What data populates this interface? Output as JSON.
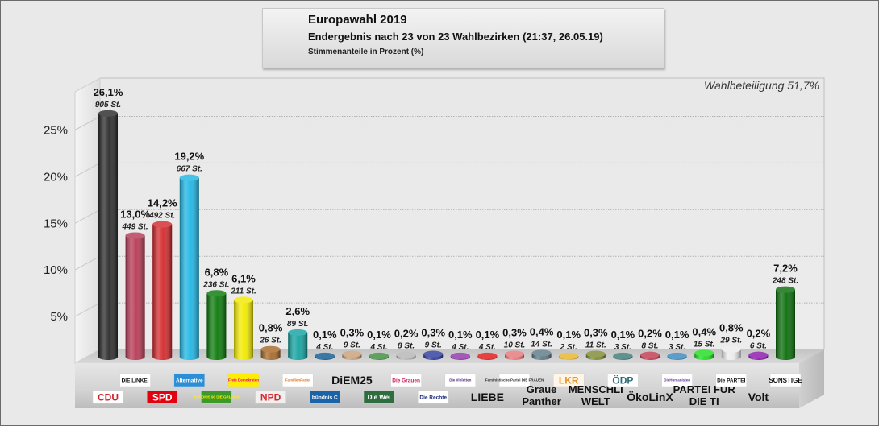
{
  "header": {
    "title": "Europawahl 2019",
    "subtitle": "Endergebnis nach 23 von 23 Wahlbezirken (21:37, 26.05.19)",
    "note": "Stimmenanteile in Prozent (%)"
  },
  "turnout_label": "Wahlbeteiligung 51,7%",
  "chart_data": {
    "type": "bar",
    "title": "Europawahl 2019",
    "subtitle": "Endergebnis nach 23 von 23 Wahlbezirken (21:37, 26.05.19)",
    "ylabel": "Stimmenanteile in Prozent (%)",
    "ylim": [
      0,
      28
    ],
    "yticks": [
      {
        "value": 5,
        "label": "5%"
      },
      {
        "value": 10,
        "label": "10%"
      },
      {
        "value": 15,
        "label": "15%"
      },
      {
        "value": 20,
        "label": "20%"
      },
      {
        "value": 25,
        "label": "25%"
      }
    ],
    "grid": true,
    "categories": [
      {
        "name": "CDU",
        "logo_text": "CDU",
        "row": "bottom",
        "value": 26.1,
        "pct_label": "26,1%",
        "votes_label": "905 St.",
        "color": "#2b2b2b",
        "logo_bg": "#ffffff",
        "logo_fg": "#d71f26"
      },
      {
        "name": "DIE LINKE.",
        "logo_text": "DIE LiNKE.",
        "row": "top",
        "value": 13.0,
        "pct_label": "13,0%",
        "votes_label": "449 St.",
        "color": "#b83a55",
        "logo_bg": "#ffffff",
        "logo_fg": "#111111"
      },
      {
        "name": "SPD",
        "logo_text": "SPD",
        "row": "bottom",
        "value": 14.2,
        "pct_label": "14,2%",
        "votes_label": "492 St.",
        "color": "#d42a2e",
        "logo_bg": "#e3000f",
        "logo_fg": "#ffffff"
      },
      {
        "name": "Alternative für Deutschland",
        "logo_text": "Alternative",
        "row": "top",
        "value": 19.2,
        "pct_label": "19,2%",
        "votes_label": "667 St.",
        "color": "#1fb6e4",
        "logo_bg": "#2a8fd8",
        "logo_fg": "#ffffff"
      },
      {
        "name": "Bündnis 90 / Die Grünen",
        "logo_text": "BÜNDNIS 90 DIE GRÜNEN",
        "row": "bottom",
        "value": 6.8,
        "pct_label": "6,8%",
        "votes_label": "236 St.",
        "color": "#0a7a0a",
        "logo_bg": "#3c9a2a",
        "logo_fg": "#ffee00"
      },
      {
        "name": "Freie Demokraten FDP",
        "logo_text": "Freie Demokraten",
        "row": "top",
        "value": 6.1,
        "pct_label": "6,1%",
        "votes_label": "211 St.",
        "color": "#f2ea00",
        "logo_bg": "#ffed00",
        "logo_fg": "#e5007d"
      },
      {
        "name": "NPD",
        "logo_text": "NPD",
        "row": "bottom",
        "value": 0.8,
        "pct_label": "0,8%",
        "votes_label": "26 St.",
        "color": "#a86a2a",
        "logo_bg": "#f0f0f0",
        "logo_fg": "#d8262e"
      },
      {
        "name": "Familien-Partei",
        "logo_text": "FamilienPartei",
        "row": "top",
        "value": 2.6,
        "pct_label": "2,6%",
        "votes_label": "89 St.",
        "color": "#14a3a0",
        "logo_bg": "#ffffff",
        "logo_fg": "#e8781e"
      },
      {
        "name": "Bündnis C",
        "logo_text": "bündnis C",
        "row": "bottom",
        "value": 0.1,
        "pct_label": "0,1%",
        "votes_label": "4 St.",
        "color": "#0e5b94",
        "logo_bg": "#1b63a8",
        "logo_fg": "#ffffff"
      },
      {
        "name": "DiEM25",
        "logo_text": "DiEM25",
        "row": "top",
        "value": 0.3,
        "pct_label": "0,3%",
        "votes_label": "9 St.",
        "color": "#c8a07a",
        "logo_bg": "#e9e9e9",
        "logo_fg": "#111111"
      },
      {
        "name": "Die Weißen",
        "logo_text": "Die Wei",
        "row": "bottom",
        "value": 0.1,
        "pct_label": "0,1%",
        "votes_label": "4 St.",
        "color": "#3e8c3e",
        "logo_bg": "#2e6e3e",
        "logo_fg": "#ffffff"
      },
      {
        "name": "Die Grauen",
        "logo_text": "Die Grauen",
        "row": "top",
        "value": 0.2,
        "pct_label": "0,2%",
        "votes_label": "8 St.",
        "color": "#b5b5b5",
        "logo_bg": "#ffffff",
        "logo_fg": "#c81e5a"
      },
      {
        "name": "Die Rechte",
        "logo_text": "Die Rechte",
        "row": "bottom",
        "value": 0.3,
        "pct_label": "0,3%",
        "votes_label": "9 St.",
        "color": "#2f3d9c",
        "logo_bg": "#ffffff",
        "logo_fg": "#1a2a7a"
      },
      {
        "name": "Die Violetten",
        "logo_text": "Die Violetten",
        "row": "top",
        "value": 0.1,
        "pct_label": "0,1%",
        "votes_label": "4 St.",
        "color": "#8e35a8",
        "logo_bg": "#ffffff",
        "logo_fg": "#5a2a7a"
      },
      {
        "name": "LIEBE",
        "logo_text": "LIEBE",
        "row": "bottom",
        "value": 0.1,
        "pct_label": "0,1%",
        "votes_label": "4 St.",
        "color": "#e01818",
        "logo_bg": "#e9e9e9",
        "logo_fg": "#111111"
      },
      {
        "name": "Feministische Partei DIE FRAUEN",
        "logo_text": "Feministische Partei DIE FRAUEN",
        "row": "top",
        "value": 0.3,
        "pct_label": "0,3%",
        "votes_label": "10 St.",
        "color": "#e6787a",
        "logo_bg": "#ffffff",
        "logo_fg": "#333333"
      },
      {
        "name": "Graue Panther",
        "logo_text": "Graue Panther",
        "row": "bottom",
        "value": 0.4,
        "pct_label": "0,4%",
        "votes_label": "14 St.",
        "color": "#5c7a86",
        "logo_bg": "#e9e9e9",
        "logo_fg": "#111111"
      },
      {
        "name": "LKR",
        "logo_text": "LKR",
        "row": "top",
        "value": 0.1,
        "pct_label": "0,1%",
        "votes_label": "2 St.",
        "color": "#e8b428",
        "logo_bg": "#fff6e8",
        "logo_fg": "#e8962a"
      },
      {
        "name": "MENSCHLICHE WELT",
        "logo_text": "MENSCHLI WELT",
        "row": "bottom",
        "value": 0.3,
        "pct_label": "0,3%",
        "votes_label": "11 St.",
        "color": "#7e8a34",
        "logo_bg": "#e9e9e9",
        "logo_fg": "#111111"
      },
      {
        "name": "ÖDP",
        "logo_text": "ÖDP",
        "row": "top",
        "value": 0.1,
        "pct_label": "0,1%",
        "votes_label": "3 St.",
        "color": "#3e7a78",
        "logo_bg": "#ffffff",
        "logo_fg": "#2e6a78"
      },
      {
        "name": "ÖkoLinX",
        "logo_text": "ÖkoLinX",
        "row": "bottom",
        "value": 0.2,
        "pct_label": "0,2%",
        "votes_label": "8 St.",
        "color": "#c03a52",
        "logo_bg": "#e9e9e9",
        "logo_fg": "#111111"
      },
      {
        "name": "Die Humanisten",
        "logo_text": "DieHumanisten",
        "row": "top",
        "value": 0.1,
        "pct_label": "0,1%",
        "votes_label": "3 St.",
        "color": "#3a88c0",
        "logo_bg": "#ffffff",
        "logo_fg": "#6a3a9a"
      },
      {
        "name": "PARTEI FÜR DIE TIERE",
        "logo_text": "PARTEI FÜR DIE TI",
        "row": "bottom",
        "value": 0.4,
        "pct_label": "0,4%",
        "votes_label": "15 St.",
        "color": "#22dd22",
        "logo_bg": "#e9e9e9",
        "logo_fg": "#111111"
      },
      {
        "name": "Die PARTEI",
        "logo_text": "Die PARTEI",
        "row": "top",
        "value": 0.8,
        "pct_label": "0,8%",
        "votes_label": "29 St.",
        "color": "#ececec",
        "logo_bg": "#ffffff",
        "logo_fg": "#111111"
      },
      {
        "name": "Volt",
        "logo_text": "Volt",
        "row": "bottom",
        "value": 0.2,
        "pct_label": "0,2%",
        "votes_label": "6 St.",
        "color": "#8a18aa",
        "logo_bg": "#e9e9e9",
        "logo_fg": "#111111"
      },
      {
        "name": "SONSTIGE",
        "logo_text": "SONSTIGE",
        "row": "top",
        "value": 7.2,
        "pct_label": "7,2%",
        "votes_label": "248 St.",
        "color": "#0a6e0a",
        "logo_bg": "#ffffff",
        "logo_fg": "#111111"
      }
    ]
  }
}
